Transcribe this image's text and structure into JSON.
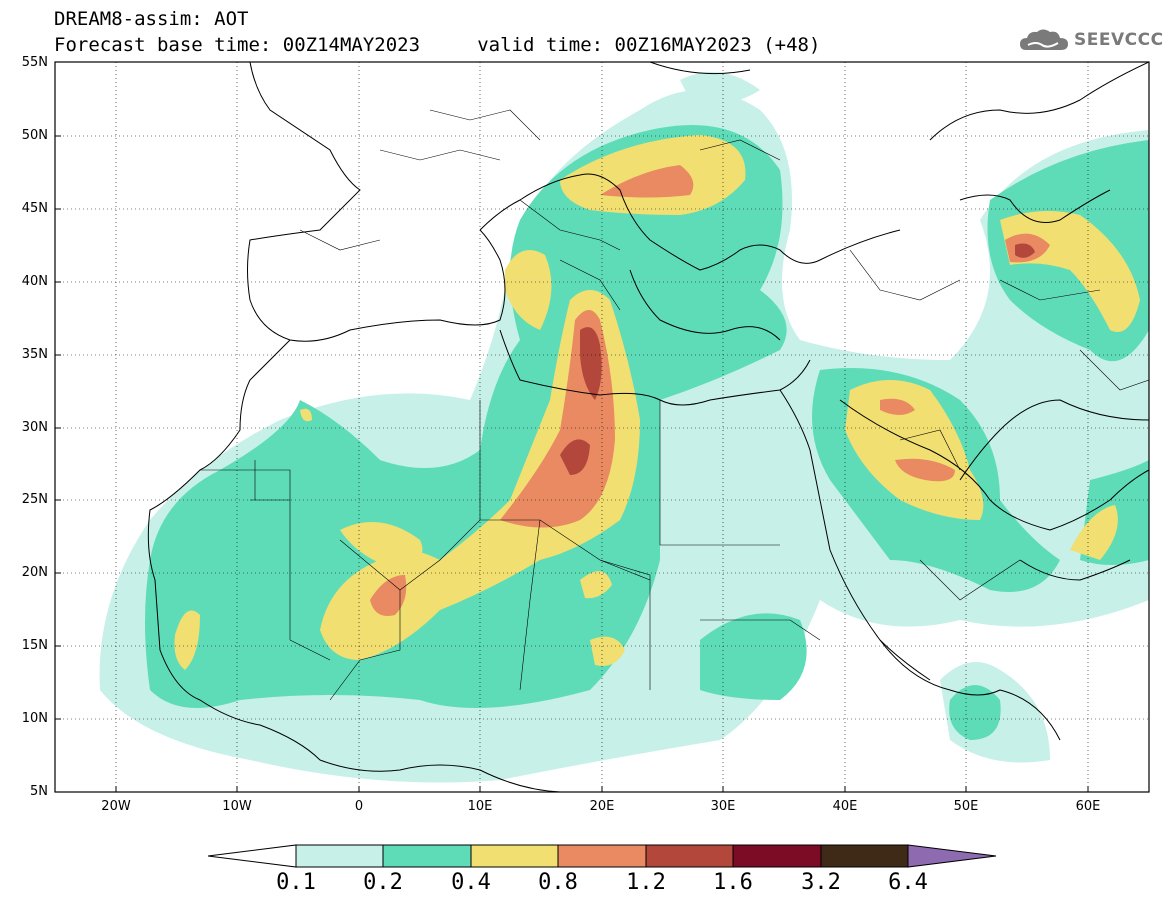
{
  "header": {
    "title_line1": "DREAM8-assim: AOT",
    "title_line2": "Forecast base time: 00Z14MAY2023     valid time: 00Z16MAY2023 (+48)"
  },
  "logo": {
    "text": "SEEVCCC",
    "icon": "cloud-icon"
  },
  "map": {
    "lat_labels": [
      "55N",
      "50N",
      "45N",
      "40N",
      "35N",
      "30N",
      "25N",
      "20N",
      "15N",
      "10N",
      "5N"
    ],
    "lon_labels": [
      "20W",
      "10W",
      "0",
      "10E",
      "20E",
      "30E",
      "40E",
      "50E",
      "60E"
    ],
    "lat_range": [
      5,
      55
    ],
    "lon_range": [
      -25,
      65
    ],
    "grid": true
  },
  "colorbar": {
    "labels": [
      "0.1",
      "0.2",
      "0.4",
      "0.8",
      "1.2",
      "1.6",
      "3.2",
      "6.4"
    ],
    "colors": [
      "#ffffff",
      "#c6f0e8",
      "#5edcb8",
      "#f1df72",
      "#e98a62",
      "#b3473b",
      "#7c0b26",
      "#3f2a17",
      "#8e6bb0"
    ]
  }
}
